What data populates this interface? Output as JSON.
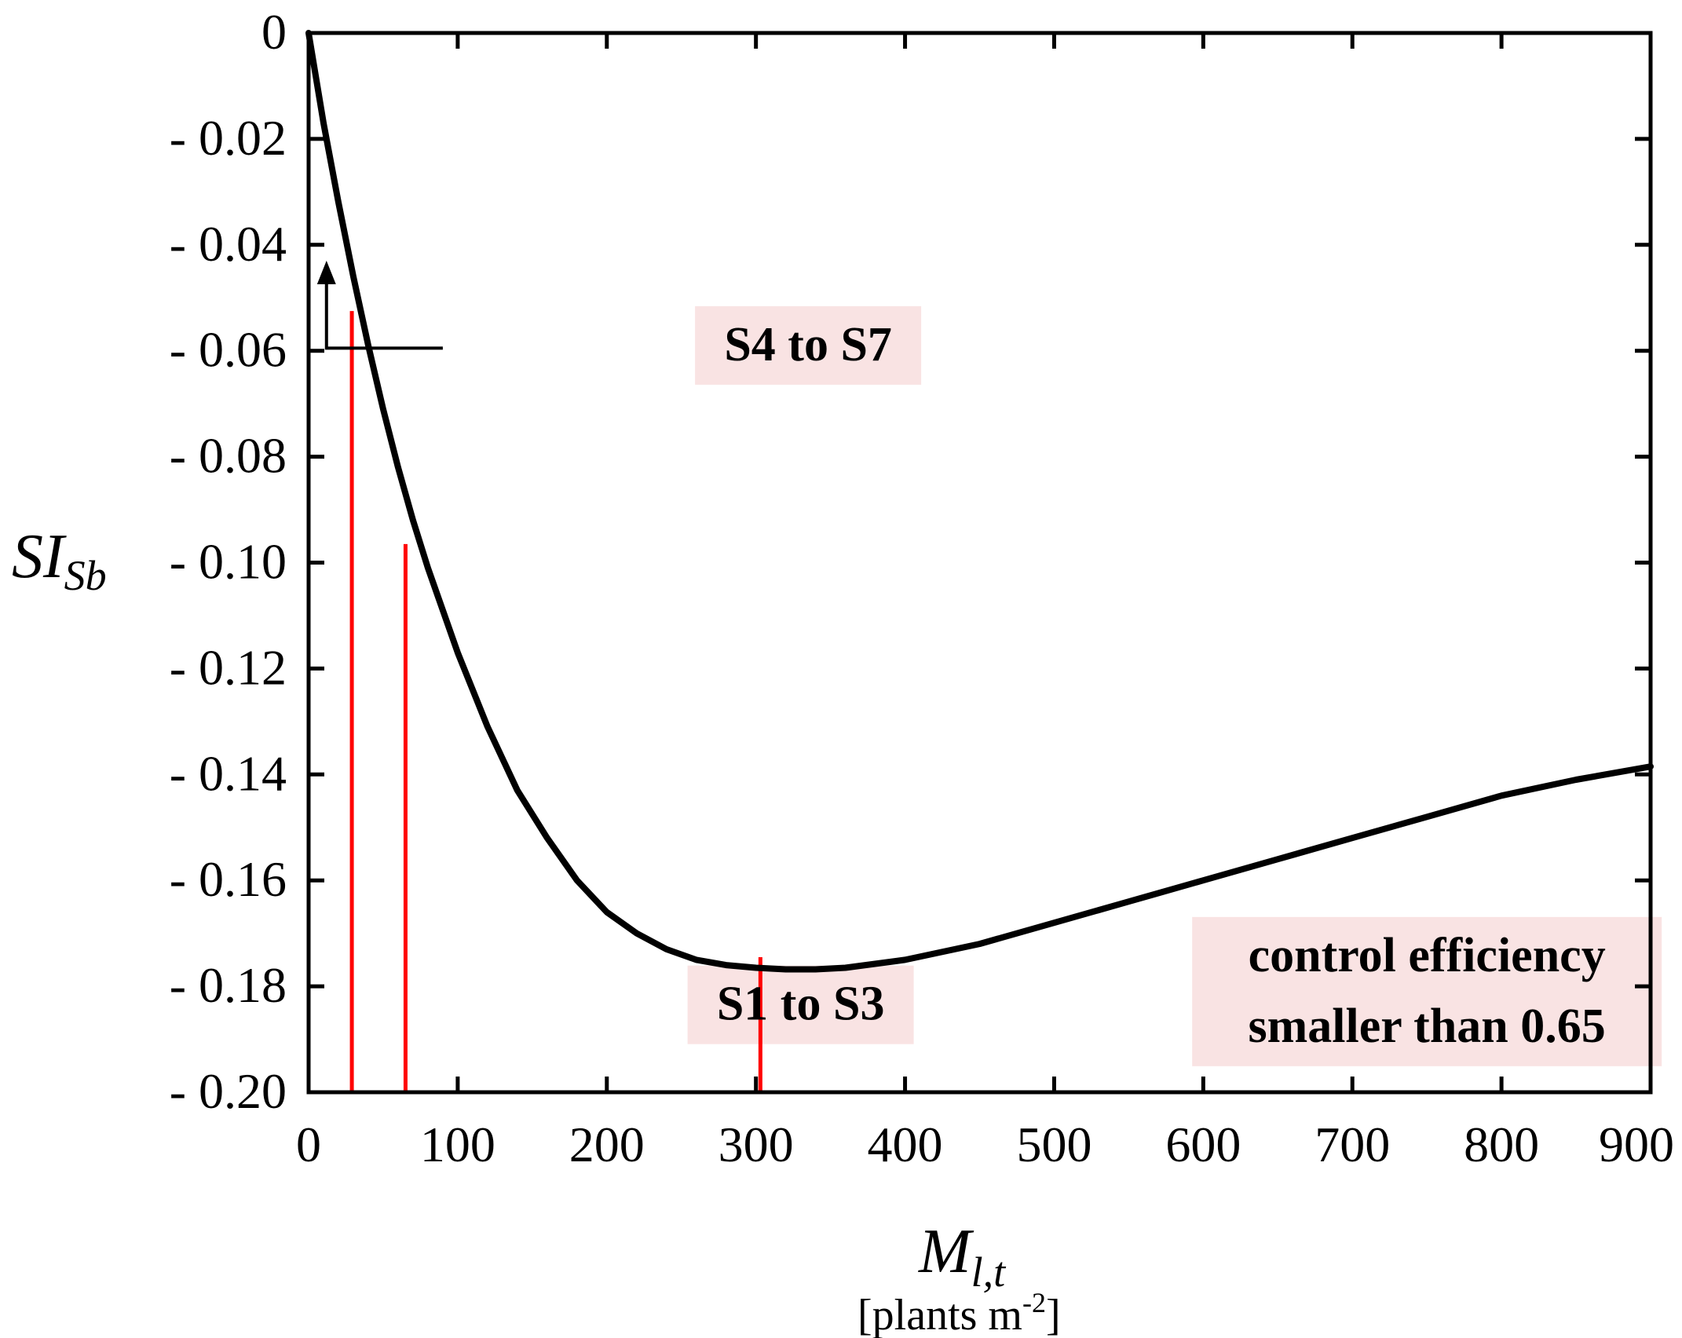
{
  "chart_data": {
    "type": "line",
    "title": "",
    "xlabel": {
      "main": "M",
      "sub": "l,t",
      "unit_prefix": "[plants m",
      "unit_sup": "-2",
      "unit_suffix": "]"
    },
    "ylabel": {
      "main": "SI",
      "sub": "Sb"
    },
    "xlim": [
      0,
      900
    ],
    "ylim": [
      -0.2,
      0
    ],
    "x_ticks": [
      0,
      100,
      200,
      300,
      400,
      500,
      600,
      700,
      800,
      900
    ],
    "x_tick_labels": [
      "0",
      "100",
      "200",
      "300",
      "400",
      "500",
      "600",
      "700",
      "800",
      "900"
    ],
    "y_ticks": [
      0,
      -0.02,
      -0.04,
      -0.06,
      -0.08,
      -0.1,
      -0.12,
      -0.14,
      -0.16,
      -0.18,
      -0.2
    ],
    "y_tick_labels": [
      "0",
      "- 0.02",
      "- 0.04",
      "- 0.06",
      "- 0.08",
      "- 0.10",
      "- 0.12",
      "- 0.14",
      "- 0.16",
      "- 0.18",
      "- 0.20"
    ],
    "grid": false,
    "series": [
      {
        "color": "#000000",
        "x": [
          0,
          10,
          20,
          30,
          40,
          50,
          60,
          70,
          80,
          100,
          120,
          140,
          160,
          180,
          200,
          220,
          240,
          260,
          280,
          300,
          320,
          340,
          360,
          400,
          450,
          500,
          550,
          600,
          650,
          700,
          750,
          800,
          850,
          900
        ],
        "y": [
          0,
          -0.017,
          -0.032,
          -0.046,
          -0.059,
          -0.071,
          -0.082,
          -0.092,
          -0.101,
          -0.117,
          -0.131,
          -0.143,
          -0.152,
          -0.16,
          -0.166,
          -0.17,
          -0.173,
          -0.175,
          -0.176,
          -0.1765,
          -0.1768,
          -0.1768,
          -0.1765,
          -0.175,
          -0.172,
          -0.168,
          -0.164,
          -0.16,
          -0.156,
          -0.152,
          -0.148,
          -0.144,
          -0.141,
          -0.1385
        ]
      }
    ],
    "markers": [
      {
        "color": "#ff0000",
        "x": 29,
        "y_top": -0.0525
      },
      {
        "color": "#ff0000",
        "x": 65,
        "y_top": -0.0965
      },
      {
        "color": "#ff0000",
        "x": 303,
        "y_top": -0.1745
      }
    ],
    "annotations": [
      {
        "lines": [
          "S4 to S7"
        ],
        "x": 335,
        "y": -0.059,
        "box": "#f9e3e3",
        "arrow": true,
        "arrow_tail": [
          90,
          -0.0595
        ],
        "arrow_corner": [
          12,
          -0.0595
        ],
        "arrow_head": [
          12,
          -0.043
        ]
      },
      {
        "lines": [
          "S1 to S3"
        ],
        "x": 330,
        "y": -0.1835,
        "box": "#f9e3e3",
        "arrow": false
      },
      {
        "lines": [
          "control efficiency",
          "smaller than 0.65"
        ],
        "x": 750,
        "y": -0.181,
        "box": "#f9e3e3",
        "arrow": false
      }
    ],
    "legend": "none"
  }
}
